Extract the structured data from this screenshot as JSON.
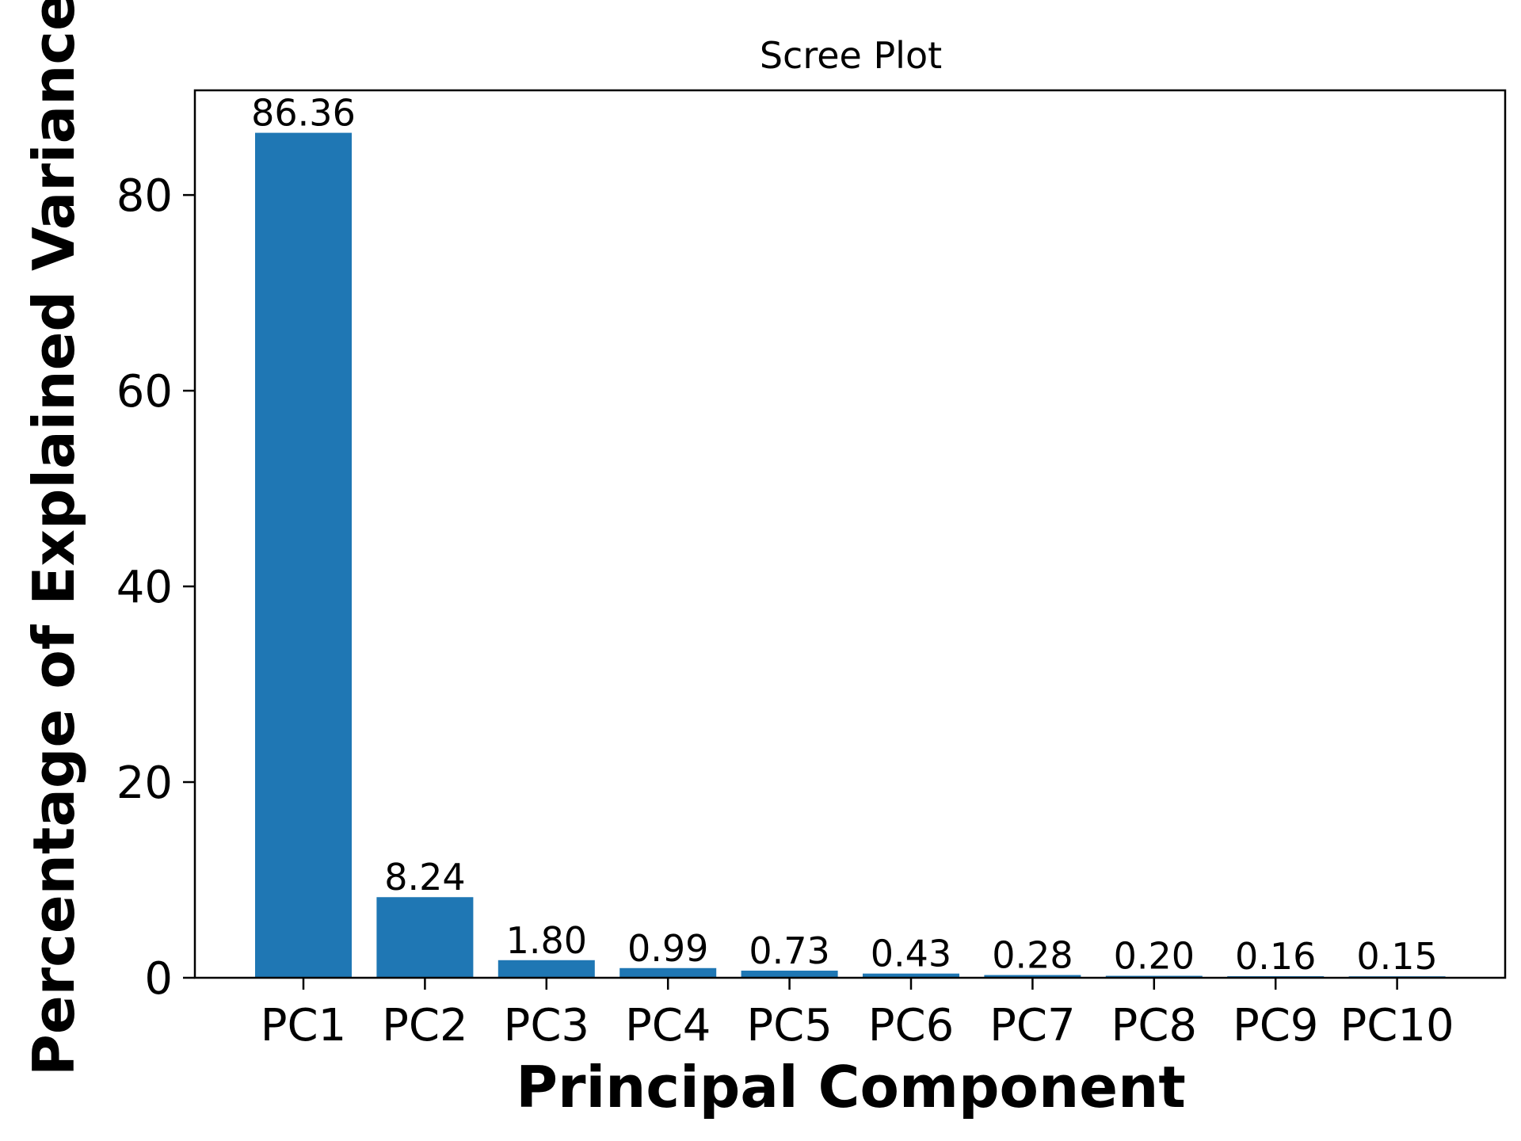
{
  "chart_data": {
    "type": "bar",
    "title": "Scree Plot",
    "xlabel": "Principal Component",
    "ylabel": "Percentage of Explained Variance",
    "categories": [
      "PC1",
      "PC2",
      "PC3",
      "PC4",
      "PC5",
      "PC6",
      "PC7",
      "PC8",
      "PC9",
      "PC10"
    ],
    "values": [
      86.36,
      8.24,
      1.8,
      0.99,
      0.73,
      0.43,
      0.28,
      0.2,
      0.16,
      0.15
    ],
    "value_labels": [
      "86.36",
      "8.24",
      "1.80",
      "0.99",
      "0.73",
      "0.43",
      "0.28",
      "0.20",
      "0.16",
      "0.15"
    ],
    "yticks": [
      0,
      20,
      40,
      60,
      80
    ],
    "ylim": [
      0,
      90.7
    ],
    "grid": false,
    "bar_color": "#1f77b4"
  }
}
